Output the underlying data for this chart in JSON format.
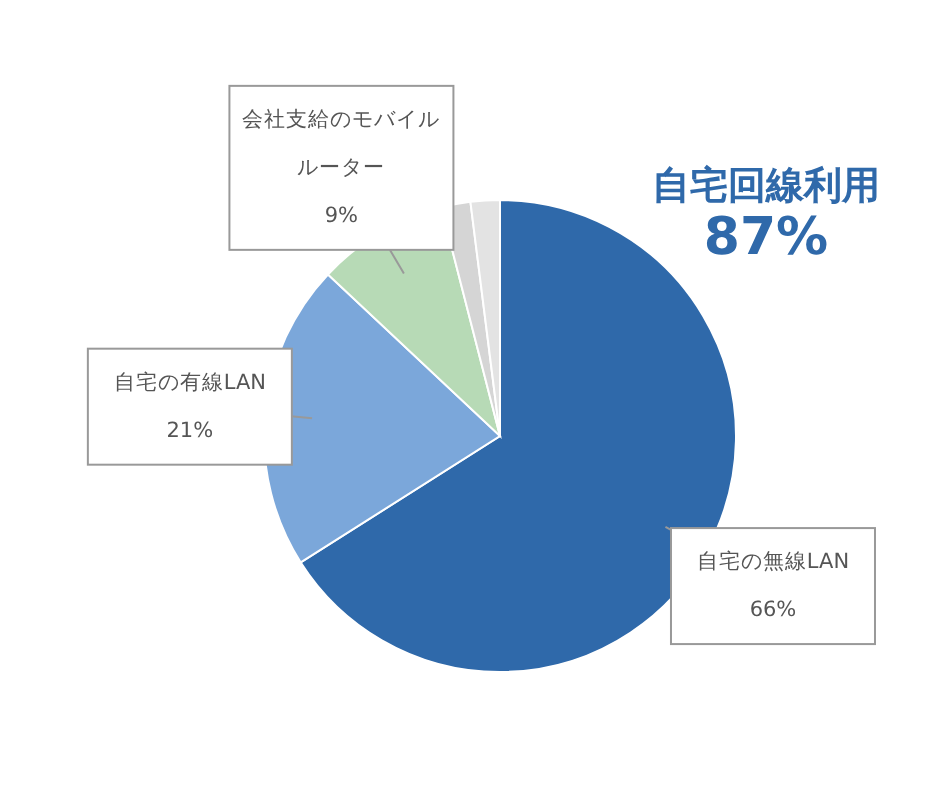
{
  "chart_data": {
    "type": "pie",
    "categories": [
      "自宅の無線LAN",
      "自宅の有線LAN",
      "会社支給のモバイルルーター",
      null,
      null
    ],
    "values": [
      66,
      21,
      9,
      2,
      2
    ],
    "colors": [
      "#2f69aa",
      "#7ba7da",
      "#b7dab6",
      "#d5d5d5",
      "#e3e3e3"
    ],
    "value_labels": [
      "66%",
      "21%",
      "9%",
      null,
      null
    ],
    "annotations": [
      "自宅回線利用",
      "87%"
    ]
  }
}
